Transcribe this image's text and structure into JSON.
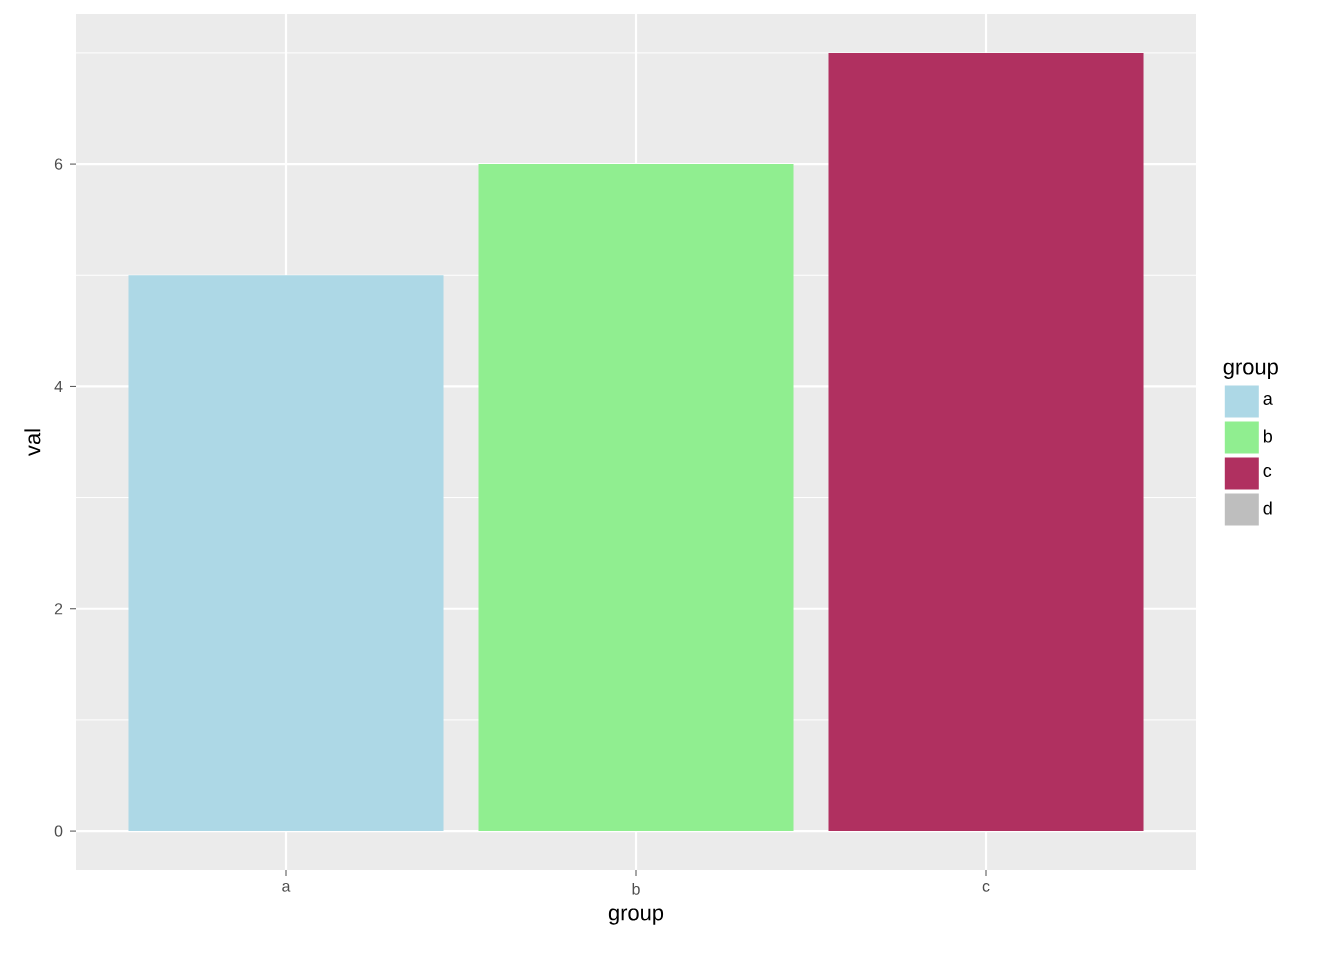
{
  "chart_data": {
    "type": "bar",
    "categories": [
      "a",
      "b",
      "c"
    ],
    "series": [
      {
        "name": "a",
        "color": "#add8e6",
        "values": [
          5,
          null,
          null
        ]
      },
      {
        "name": "b",
        "color": "#90ee90",
        "values": [
          null,
          6,
          null
        ]
      },
      {
        "name": "c",
        "color": "#b03060",
        "values": [
          null,
          null,
          7
        ]
      },
      {
        "name": "d",
        "color": "#bebebe",
        "values": [
          null,
          null,
          null
        ]
      }
    ],
    "xlabel": "group",
    "ylabel": "val",
    "legend_title": "group",
    "ylim": [
      -0.35,
      7.35
    ],
    "yticks": [
      0,
      2,
      4,
      6
    ],
    "grid": true,
    "legend": "right"
  }
}
